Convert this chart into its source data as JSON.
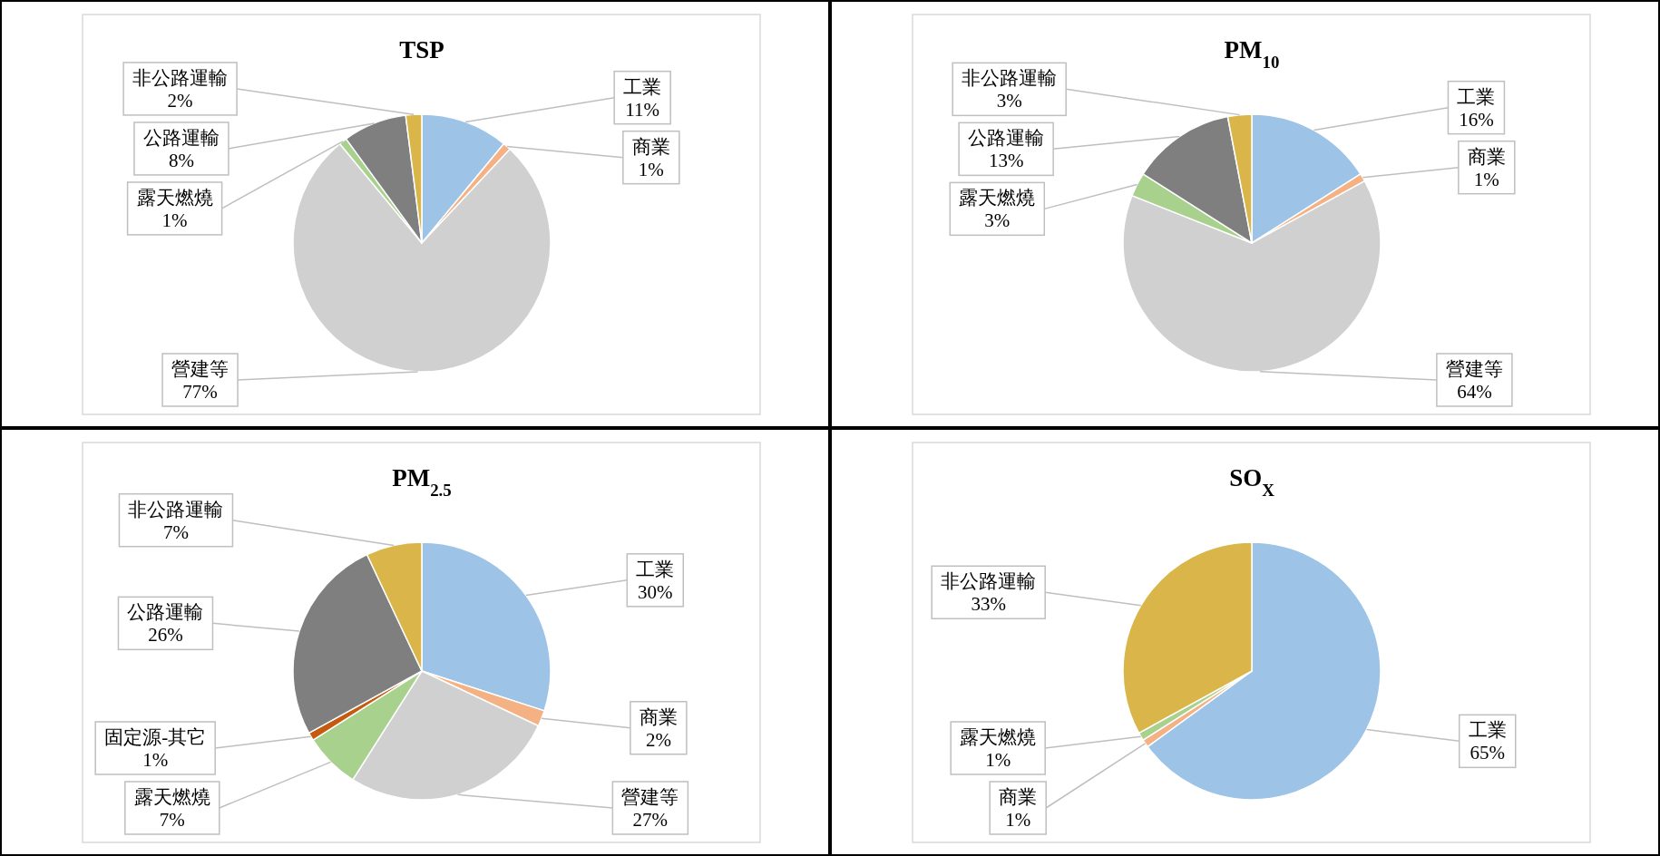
{
  "chart_data": [
    {
      "type": "pie",
      "title": "TSP",
      "categories": [
        "工業",
        "商業",
        "營建等",
        "露天燃燒",
        "公路運輸",
        "非公路運輸"
      ],
      "values": [
        11,
        1,
        77,
        1,
        8,
        2
      ],
      "value_labels": [
        "11%",
        "1%",
        "77%",
        "1%",
        "8%",
        "2%"
      ],
      "colors": [
        "#9dc3e6",
        "#f4b183",
        "#d0d0d0",
        "#a9d18e",
        "#7f7f7f",
        "#dab54a"
      ]
    },
    {
      "type": "pie",
      "title": "PM$_{10}$",
      "categories": [
        "工業",
        "商業",
        "營建等",
        "露天燃燒",
        "公路運輸",
        "非公路運輸"
      ],
      "values": [
        16,
        1,
        64,
        3,
        13,
        3
      ],
      "value_labels": [
        "16%",
        "1%",
        "64%",
        "3%",
        "13%",
        "3%"
      ],
      "colors": [
        "#9dc3e6",
        "#f4b183",
        "#d0d0d0",
        "#a9d18e",
        "#7f7f7f",
        "#dab54a"
      ]
    },
    {
      "type": "pie",
      "title": "PM$_{2.5}$",
      "categories": [
        "工業",
        "商業",
        "營建等",
        "露天燃燒",
        "固定源-其它",
        "公路運輸",
        "非公路運輸"
      ],
      "values": [
        30,
        2,
        27,
        7,
        1,
        26,
        7
      ],
      "value_labels": [
        "30%",
        "2%",
        "27%",
        "7%",
        "1%",
        "26%",
        "7%"
      ],
      "colors": [
        "#9dc3e6",
        "#f4b183",
        "#d0d0d0",
        "#a9d18e",
        "#c55a11",
        "#7f7f7f",
        "#dab54a"
      ]
    },
    {
      "type": "pie",
      "title": "SO$_{X}$",
      "categories": [
        "工業",
        "商業",
        "露天燃燒",
        "非公路運輸"
      ],
      "values": [
        65,
        1,
        1,
        33
      ],
      "value_labels": [
        "65%",
        "1%",
        "1%",
        "33%"
      ],
      "colors": [
        "#9dc3e6",
        "#f4b183",
        "#a9d18e",
        "#dab54a"
      ]
    }
  ]
}
